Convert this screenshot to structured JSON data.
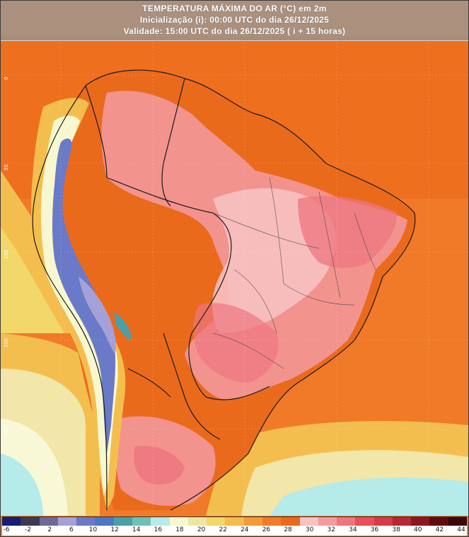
{
  "header": {
    "title": "TEMPERATURA MÁXIMA DO AR (°C) em 2m",
    "init": "Inicialização (i): 00:00 UTC do dia 26/12/2025",
    "valid": "Validade: 15:00 UTC do dia 26/12/2025 ( i + 15 horas)"
  },
  "map": {
    "lat_labels": [
      "0",
      "5S",
      "10S",
      "20S",
      "30S"
    ],
    "region": "South America / Brazil"
  },
  "colorbar": {
    "colors": [
      "#141e73",
      "#3a3a55",
      "#6b6b95",
      "#a5a0d8",
      "#6a7ac8",
      "#4c77c4",
      "#48a0a8",
      "#6cc2b6",
      "#b5ebe8",
      "#f8f8d0",
      "#f0e6a4",
      "#f2d76a",
      "#f4bc4c",
      "#f39b38",
      "#ef7d28",
      "#ea6a1c",
      "#f7c2c2",
      "#f39aa2",
      "#ee7680",
      "#e5505a",
      "#d63a48",
      "#b52834",
      "#8c1620",
      "#5e0c10",
      "#3a0808"
    ],
    "ticks": [
      "-6",
      "-2",
      "2",
      "6",
      "10",
      "12",
      "14",
      "16",
      "18",
      "20",
      "22",
      "24",
      "26",
      "28",
      "30",
      "32",
      "34",
      "36",
      "38",
      "40",
      "42",
      "44"
    ]
  }
}
